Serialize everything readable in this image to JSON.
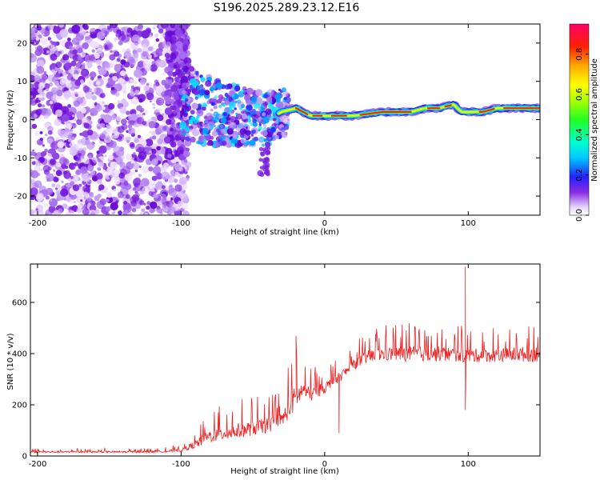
{
  "title": "S196.2025.289.23.12.E16",
  "charts": [
    {
      "type": "heatmap",
      "xlabel": "Height of straight line (km)",
      "ylabel": "Frequency (Hz)",
      "xlim": [
        -205,
        150
      ],
      "ylim": [
        -25,
        25
      ],
      "xticks": [
        "-200",
        "-100",
        "0",
        "100"
      ],
      "xtick_values": [
        -200,
        -100,
        0,
        100
      ],
      "yticks": [
        "20",
        "10",
        "0",
        "-10",
        "-20"
      ],
      "ytick_values": [
        20,
        10,
        0,
        -10,
        -20
      ],
      "colorbar": {
        "label": "Normalized spectral amplitude",
        "ticks": [
          "0.0",
          "0.2",
          "0.4",
          "0.6",
          "0.8"
        ],
        "tick_values": [
          0.0,
          0.2,
          0.4,
          0.6,
          0.8
        ],
        "range": [
          0,
          0.95
        ]
      },
      "carrier_trace": {
        "x": [
          -100,
          -80,
          -60,
          -40,
          -30,
          -20,
          -10,
          0,
          10,
          20,
          40,
          60,
          70,
          80,
          90,
          95,
          100,
          110,
          120,
          150
        ],
        "y": [
          5,
          2,
          1,
          0,
          2,
          3,
          1,
          1,
          1,
          1,
          2,
          2,
          3,
          3,
          4,
          2,
          2,
          2,
          3,
          3
        ]
      }
    },
    {
      "type": "line",
      "xlabel": "Height of straight line (km)",
      "ylabel": "SNR (10 * v/v)",
      "xlim": [
        -205,
        150
      ],
      "ylim": [
        0,
        750
      ],
      "xticks": [
        "-200",
        "-100",
        "0",
        "100"
      ],
      "xtick_values": [
        -200,
        -100,
        0,
        100
      ],
      "yticks": [
        "0",
        "200",
        "400",
        "600"
      ],
      "ytick_values": [
        0,
        200,
        400,
        600
      ],
      "color": "#ee2222",
      "envelope": {
        "x": [
          -205,
          -120,
          -100,
          -90,
          -80,
          -60,
          -40,
          -30,
          -22,
          -15,
          -10,
          0,
          10,
          20,
          30,
          40,
          60,
          80,
          100,
          120,
          150
        ],
        "base": [
          15,
          15,
          20,
          40,
          70,
          90,
          110,
          130,
          200,
          250,
          230,
          260,
          300,
          350,
          380,
          390,
          390,
          390,
          385,
          385,
          390
        ],
        "spread": [
          15,
          15,
          25,
          70,
          110,
          130,
          130,
          130,
          220,
          140,
          120,
          100,
          90,
          90,
          110,
          120,
          130,
          130,
          120,
          120,
          140
        ]
      },
      "spikes": [
        {
          "x": 98,
          "y": 740
        },
        {
          "x": 98,
          "y": 180
        },
        {
          "x": 10,
          "y": 90
        },
        {
          "x": -20,
          "y": 470
        }
      ]
    }
  ]
}
